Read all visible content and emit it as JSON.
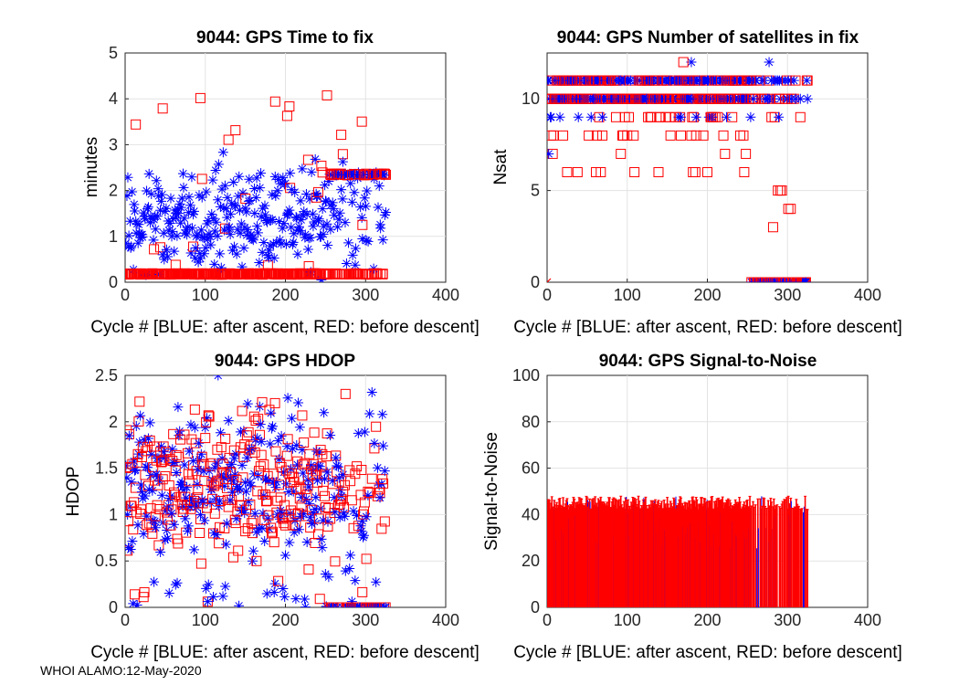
{
  "colors": {
    "after_ascent": "#0000ff",
    "before_descent": "#ff0000",
    "grid": "#e3e3e3",
    "axis": "#262626"
  },
  "footer": "WHOI ALAMO:12-May-2020",
  "chart_data": [
    {
      "id": "ttf",
      "type": "scatter",
      "title": "9044: GPS Time to fix",
      "xlabel": "Cycle #  [BLUE: after ascent, RED: before descent]",
      "ylabel": "minutes",
      "xlim": [
        0,
        400
      ],
      "ylim": [
        0,
        5
      ],
      "xticks": [
        0,
        100,
        200,
        300,
        400
      ],
      "yticks": [
        0,
        1,
        2,
        3,
        4,
        5
      ],
      "series": [
        {
          "name": "after ascent",
          "marker": "star",
          "color": "#0000ff",
          "x_range": [
            1,
            325
          ],
          "y_range": [
            0.1,
            4.2
          ],
          "notes": "scattered fixes up to ~4.2 min; cluster at 2.35 for cycles 255-325"
        },
        {
          "name": "before descent",
          "marker": "square",
          "color": "#ff0000",
          "x_range": [
            1,
            325
          ],
          "y_typical": 0.2,
          "notes": "mostly ~0.2 min; several outliers 0.3-4.2 min; cluster at 2.35 for cycles 255-325"
        }
      ]
    },
    {
      "id": "nsat",
      "type": "scatter",
      "title": "9044: GPS Number of satellites in fix",
      "xlabel": "Cycle #  [BLUE: after ascent, RED: before descent]",
      "ylabel": "Nsat",
      "xlim": [
        0,
        400
      ],
      "ylim": [
        0,
        12.5
      ],
      "xticks": [
        0,
        100,
        200,
        300,
        400
      ],
      "yticks": [
        0,
        5,
        10
      ],
      "series": [
        {
          "name": "after ascent",
          "marker": "star",
          "color": "#0000ff",
          "x_range": [
            1,
            325
          ],
          "values_main": [
            10,
            11
          ],
          "notes": "mostly 10-11 satellites; a few 9, 7 and 12; zeros for cycles 255-325"
        },
        {
          "name": "before descent",
          "marker": "square",
          "color": "#ff0000",
          "x_range": [
            1,
            325
          ],
          "values_main": [
            10,
            11
          ],
          "notes": "10-11 mostly, many at 6-9; scattered 3-5 near cycles 280-320; zeros for cycles 255-325; one x at cycle 0"
        }
      ]
    },
    {
      "id": "hdop",
      "type": "scatter",
      "title": "9044: GPS HDOP",
      "xlabel": "Cycle #  [BLUE: after ascent, RED: before descent]",
      "ylabel": "HDOP",
      "xlim": [
        0,
        400
      ],
      "ylim": [
        0,
        2.5
      ],
      "xticks": [
        0,
        100,
        200,
        300,
        400
      ],
      "yticks": [
        0,
        0.5,
        1,
        1.5,
        2,
        2.5
      ],
      "series": [
        {
          "name": "after ascent",
          "marker": "star",
          "color": "#0000ff",
          "x_range": [
            1,
            325
          ],
          "y_range": [
            0,
            2.5
          ]
        },
        {
          "name": "before descent",
          "marker": "square",
          "color": "#ff0000",
          "x_range": [
            1,
            325
          ],
          "y_range": [
            0,
            2.4
          ],
          "notes": "zeros clustered at cycles 255-325"
        }
      ]
    },
    {
      "id": "snr",
      "type": "bar",
      "title": "9044: GPS Signal-to-Noise",
      "xlabel": "Cycle #  [BLUE: after ascent, RED: before descent]",
      "ylabel": "Signal-to-Noise",
      "xlim": [
        0,
        400
      ],
      "ylim": [
        0,
        100
      ],
      "xticks": [
        0,
        100,
        200,
        300,
        400
      ],
      "yticks": [
        0,
        20,
        40,
        60,
        80,
        100
      ],
      "series": [
        {
          "name": "before descent",
          "color": "#ff0000",
          "x_range": [
            1,
            325
          ],
          "y_typical": 45,
          "notes": "dense bars ~40-48; several gaps near cycles 255-325"
        },
        {
          "name": "after ascent",
          "color": "#0000ff",
          "x_range": [
            1,
            325
          ],
          "notes": "thin blue bars interleaved, some reaching ~45-48"
        }
      ]
    }
  ]
}
